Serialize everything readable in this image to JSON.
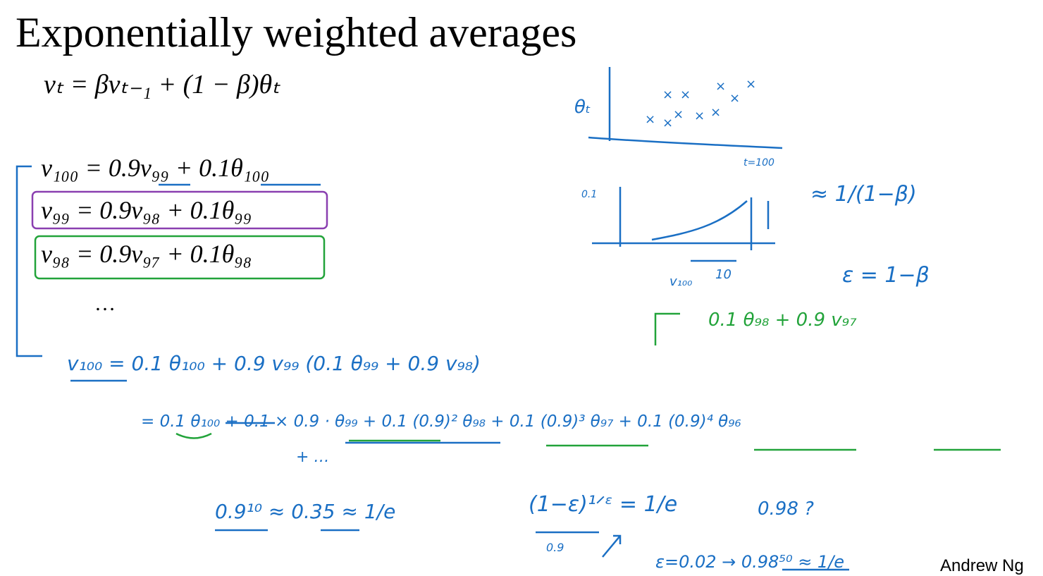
{
  "title": "Exponentially weighted averages",
  "equations": [
    "vₜ = βvₜ₋₁ + (1 − β)θₜ",
    "v₁₀₀ = 0.9v₉₉ + 0.1θ₁₀₀",
    "v₉₉ = 0.9v₉₈ + 0.1θ₉₉",
    "v₉₈ = 0.9v₉₇ + 0.1θ₉₈",
    "…"
  ],
  "notes": [
    "θₜ",
    "t=100",
    "0.1",
    "v₁₀₀",
    "10",
    "≈ 1/(1−β)",
    "ε = 1−β",
    "0.1 θ₉₈ + 0.9 v₉₇",
    "v₁₀₀ = 0.1 θ₁₀₀ + 0.9 v₉₉ (0.1 θ₉₉ + 0.9 v₉₈)",
    "= 0.1 θ₁₀₀ + 0.1 × 0.9 · θ₉₉ + 0.1 (0.9)² θ₉₈ + 0.1 (0.9)³ θ₉₇ + 0.1 (0.9)⁴ θ₉₆",
    "+ …",
    "0.9¹⁰ ≈ 0.35 ≈ 1/e",
    "(1−ε)¹ᐟᵋ = 1/e",
    "0.9",
    "0.98 ?",
    "ε=0.02 → 0.98⁵⁰ ≈ 1/e"
  ],
  "footer": "Andrew Ng"
}
